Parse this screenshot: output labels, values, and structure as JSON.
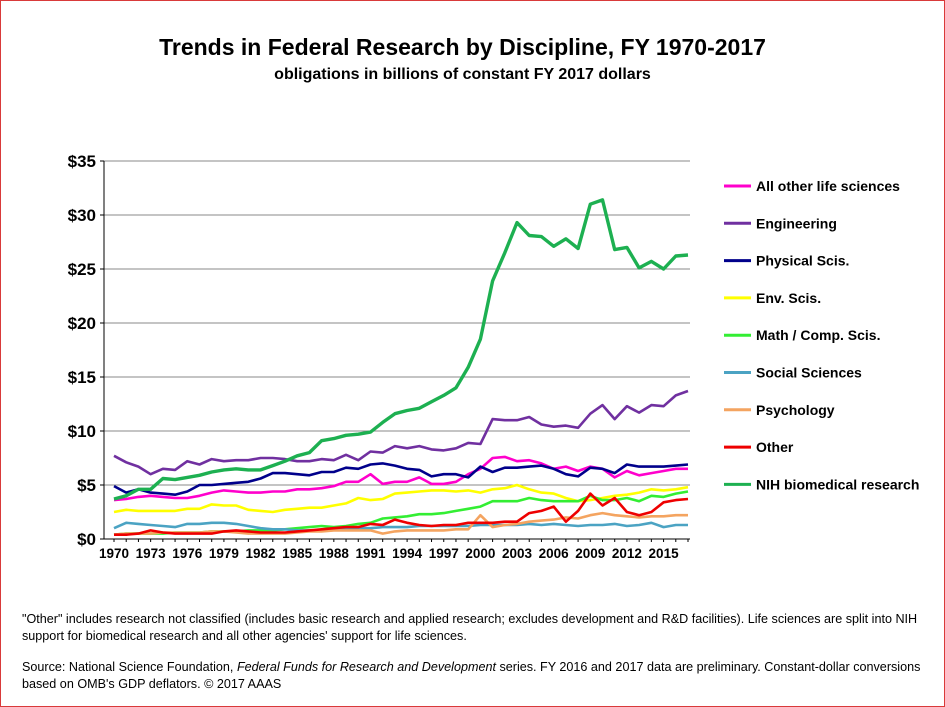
{
  "chart_data": {
    "type": "line",
    "title": "Trends in Federal Research by Discipline, FY 1970-2017",
    "subtitle": "obligations in billions of constant FY 2017 dollars",
    "ylim": [
      0,
      35
    ],
    "ytick_labels": [
      "$0",
      "$5",
      "$10",
      "$15",
      "$20",
      "$25",
      "$30",
      "$35"
    ],
    "x_tick_labels": [
      "1970",
      "1973",
      "1976",
      "1979",
      "1982",
      "1985",
      "1988",
      "1991",
      "1994",
      "1997",
      "2000",
      "2003",
      "2006",
      "2009",
      "2012",
      "2015"
    ],
    "x": [
      1970,
      1971,
      1972,
      1973,
      1974,
      1975,
      1976,
      1977,
      1978,
      1979,
      1980,
      1981,
      1982,
      1983,
      1984,
      1985,
      1986,
      1987,
      1988,
      1989,
      1990,
      1991,
      1992,
      1993,
      1994,
      1995,
      1996,
      1997,
      1998,
      1999,
      2000,
      2001,
      2002,
      2003,
      2004,
      2005,
      2006,
      2007,
      2008,
      2009,
      2010,
      2011,
      2012,
      2013,
      2014,
      2015,
      2016,
      2017
    ],
    "grid": "horizontal",
    "legend_position": "right",
    "series": [
      {
        "name": "All other life sciences",
        "color": "#ff00cc",
        "values": [
          3.6,
          3.7,
          3.9,
          4.0,
          3.9,
          3.8,
          3.8,
          4.0,
          4.3,
          4.5,
          4.4,
          4.3,
          4.3,
          4.4,
          4.4,
          4.6,
          4.6,
          4.7,
          4.9,
          5.3,
          5.3,
          6.0,
          5.1,
          5.3,
          5.3,
          5.7,
          5.1,
          5.1,
          5.3,
          6.0,
          6.5,
          7.5,
          7.6,
          7.2,
          7.3,
          7.0,
          6.5,
          6.7,
          6.3,
          6.7,
          6.5,
          5.7,
          6.3,
          5.9,
          6.1,
          6.3,
          6.5,
          6.5
        ]
      },
      {
        "name": "Engineering",
        "color": "#7030a0",
        "values": [
          7.7,
          7.1,
          6.7,
          6.0,
          6.5,
          6.4,
          7.2,
          6.9,
          7.4,
          7.2,
          7.3,
          7.3,
          7.5,
          7.5,
          7.4,
          7.2,
          7.2,
          7.4,
          7.3,
          7.8,
          7.3,
          8.1,
          8.0,
          8.6,
          8.4,
          8.6,
          8.3,
          8.2,
          8.4,
          8.9,
          8.8,
          11.1,
          11.0,
          11.0,
          11.3,
          10.6,
          10.4,
          10.5,
          10.3,
          11.6,
          12.4,
          11.1,
          12.3,
          11.7,
          12.4,
          12.3,
          13.3,
          13.7
        ]
      },
      {
        "name": "Physical Scis.",
        "color": "#00008b",
        "values": [
          4.9,
          4.3,
          4.6,
          4.3,
          4.2,
          4.1,
          4.4,
          5.0,
          5.0,
          5.1,
          5.2,
          5.3,
          5.6,
          6.1,
          6.1,
          6.0,
          5.9,
          6.2,
          6.2,
          6.6,
          6.5,
          6.9,
          7.0,
          6.8,
          6.5,
          6.4,
          5.8,
          6.0,
          6.0,
          5.7,
          6.7,
          6.2,
          6.6,
          6.6,
          6.7,
          6.8,
          6.5,
          6.0,
          5.8,
          6.6,
          6.5,
          6.1,
          6.9,
          6.7,
          6.7,
          6.7,
          6.8,
          6.9
        ]
      },
      {
        "name": "Env. Scis.",
        "color": "#ffff00",
        "values": [
          2.5,
          2.7,
          2.6,
          2.6,
          2.6,
          2.6,
          2.8,
          2.8,
          3.2,
          3.1,
          3.1,
          2.7,
          2.6,
          2.5,
          2.7,
          2.8,
          2.9,
          2.9,
          3.1,
          3.3,
          3.8,
          3.6,
          3.7,
          4.2,
          4.3,
          4.4,
          4.5,
          4.5,
          4.4,
          4.5,
          4.3,
          4.6,
          4.7,
          5.0,
          4.6,
          4.3,
          4.2,
          3.8,
          3.5,
          3.6,
          3.8,
          4.0,
          4.1,
          4.3,
          4.6,
          4.5,
          4.6,
          4.8
        ]
      },
      {
        "name": "Math / Comp. Scis.",
        "color": "#33ee33",
        "values": [
          0.4,
          0.5,
          0.5,
          0.5,
          0.5,
          0.6,
          0.6,
          0.6,
          0.7,
          0.7,
          0.7,
          0.8,
          0.8,
          0.8,
          0.9,
          1.0,
          1.1,
          1.2,
          1.1,
          1.2,
          1.4,
          1.5,
          1.9,
          2.0,
          2.1,
          2.3,
          2.3,
          2.4,
          2.6,
          2.8,
          3.0,
          3.5,
          3.5,
          3.5,
          3.8,
          3.6,
          3.5,
          3.5,
          3.5,
          4.0,
          3.6,
          3.6,
          3.8,
          3.5,
          4.0,
          3.9,
          4.2,
          4.4
        ]
      },
      {
        "name": "Social Sciences",
        "color": "#4ba3c3",
        "values": [
          1.0,
          1.5,
          1.4,
          1.3,
          1.2,
          1.1,
          1.4,
          1.4,
          1.5,
          1.5,
          1.4,
          1.2,
          1.0,
          0.9,
          0.9,
          0.8,
          0.8,
          0.8,
          0.9,
          0.9,
          1.0,
          1.0,
          1.1,
          1.1,
          1.1,
          1.2,
          1.2,
          1.2,
          1.2,
          1.2,
          1.3,
          1.3,
          1.3,
          1.3,
          1.4,
          1.3,
          1.4,
          1.3,
          1.2,
          1.3,
          1.3,
          1.4,
          1.2,
          1.3,
          1.5,
          1.1,
          1.3,
          1.3
        ]
      },
      {
        "name": "Psychology",
        "color": "#f4a460",
        "values": [
          0.4,
          0.5,
          0.5,
          0.5,
          0.6,
          0.6,
          0.6,
          0.6,
          0.7,
          0.7,
          0.6,
          0.5,
          0.5,
          0.5,
          0.5,
          0.6,
          0.7,
          0.7,
          0.8,
          0.8,
          0.8,
          0.8,
          0.5,
          0.7,
          0.8,
          0.8,
          0.8,
          0.8,
          0.9,
          0.9,
          2.2,
          1.1,
          1.3,
          1.4,
          1.6,
          1.7,
          1.8,
          2.0,
          1.9,
          2.2,
          2.4,
          2.2,
          2.1,
          2.0,
          2.1,
          2.1,
          2.2,
          2.2
        ]
      },
      {
        "name": "Other",
        "color": "#ee0000",
        "values": [
          0.4,
          0.4,
          0.5,
          0.8,
          0.6,
          0.5,
          0.5,
          0.5,
          0.5,
          0.7,
          0.8,
          0.7,
          0.6,
          0.6,
          0.6,
          0.7,
          0.8,
          0.9,
          1.0,
          1.1,
          1.1,
          1.4,
          1.3,
          1.8,
          1.5,
          1.3,
          1.2,
          1.3,
          1.3,
          1.5,
          1.5,
          1.5,
          1.6,
          1.6,
          2.4,
          2.6,
          3.0,
          1.6,
          2.6,
          4.2,
          3.1,
          3.8,
          2.5,
          2.2,
          2.5,
          3.4,
          3.6,
          3.7
        ]
      },
      {
        "name": "NIH biomedical research",
        "color": "#1db051",
        "values": [
          3.7,
          4.0,
          4.6,
          4.6,
          5.6,
          5.5,
          5.7,
          5.9,
          6.2,
          6.4,
          6.5,
          6.4,
          6.4,
          6.8,
          7.2,
          7.7,
          8.0,
          9.1,
          9.3,
          9.6,
          9.7,
          9.9,
          10.8,
          11.6,
          11.9,
          12.1,
          12.7,
          13.3,
          14.0,
          15.9,
          18.5,
          23.9,
          26.5,
          29.3,
          28.1,
          28.0,
          27.1,
          27.8,
          26.9,
          31.0,
          31.4,
          26.8,
          27.0,
          25.1,
          25.7,
          25.0,
          26.2,
          26.3
        ]
      }
    ]
  },
  "footnote": "\"Other\" includes research not classified (includes basic research and applied research; excludes development and R&D facilities). Life sciences are split into NIH  support for biomedical research and all other agencies' support for life sciences.",
  "source": {
    "prefix": "Source: National Science Foundation, ",
    "italic": "Federal Funds for Research and Development",
    "suffix": " series. FY 2016 and 2017 data are preliminary. Constant-dollar conversions based on OMB's GDP deflators. © 2017 AAAS"
  }
}
